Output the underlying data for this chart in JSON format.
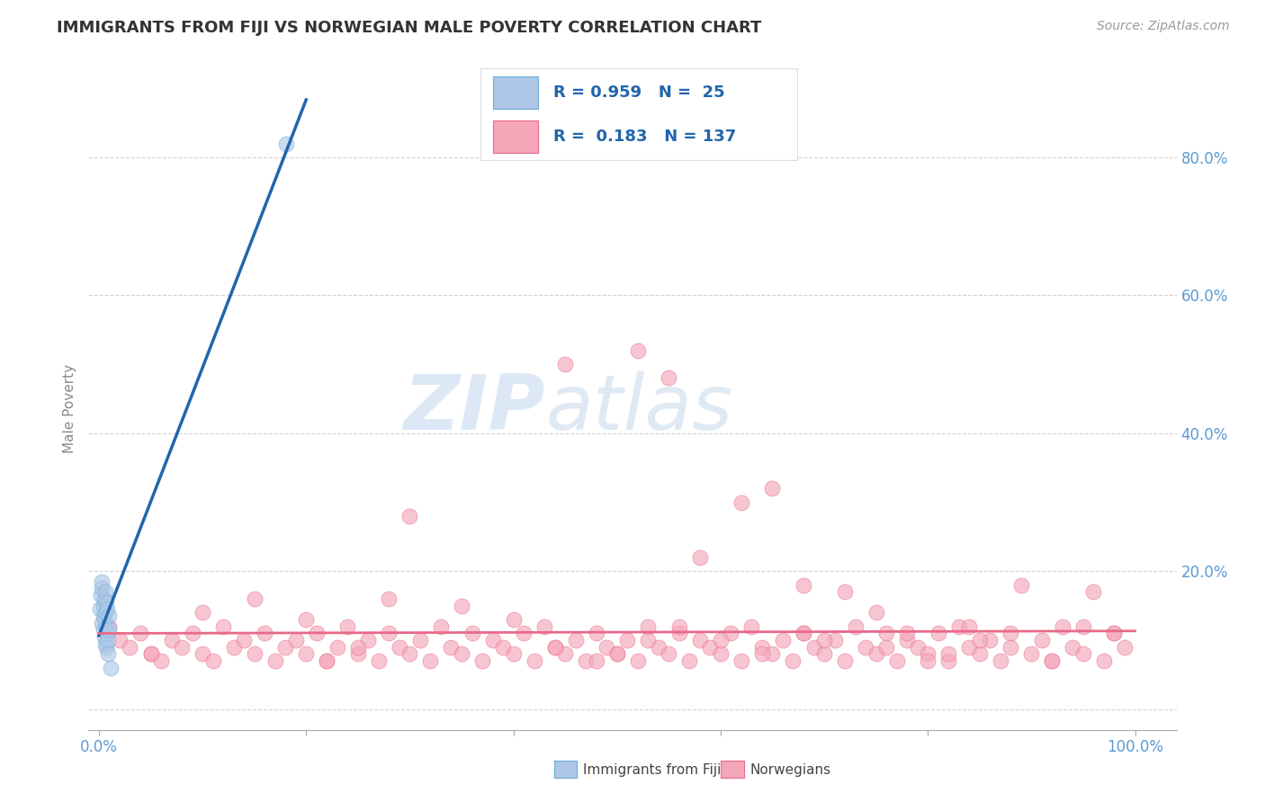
{
  "title": "IMMIGRANTS FROM FIJI VS NORWEGIAN MALE POVERTY CORRELATION CHART",
  "source": "Source: ZipAtlas.com",
  "ylabel": "Male Poverty",
  "x_ticks": [
    0.0,
    0.2,
    0.4,
    0.6,
    0.8,
    1.0
  ],
  "x_tick_labels": [
    "0.0%",
    "",
    "",
    "",
    "",
    "100.0%"
  ],
  "y_ticks": [
    0.0,
    0.2,
    0.4,
    0.6,
    0.8
  ],
  "y_tick_labels": [
    "",
    "20.0%",
    "40.0%",
    "60.0%",
    "80.0%"
  ],
  "legend_fiji_r": "0.959",
  "legend_fiji_n": "25",
  "legend_nor_r": "0.183",
  "legend_nor_n": "137",
  "blue_scatter_color": "#aec7e8",
  "pink_scatter_color": "#f4a7b9",
  "blue_line_color": "#2166ac",
  "pink_line_color": "#e8698a",
  "tick_color": "#5b9bd5",
  "watermark_color": "#c6d9f0",
  "ylabel_color": "#888888",
  "fiji_x": [
    0.001,
    0.002,
    0.003,
    0.003,
    0.003,
    0.004,
    0.004,
    0.004,
    0.005,
    0.005,
    0.005,
    0.006,
    0.006,
    0.006,
    0.007,
    0.007,
    0.007,
    0.008,
    0.008,
    0.009,
    0.009,
    0.01,
    0.01,
    0.011,
    0.181
  ],
  "fiji_y": [
    0.145,
    0.165,
    0.175,
    0.185,
    0.125,
    0.135,
    0.15,
    0.115,
    0.13,
    0.16,
    0.105,
    0.14,
    0.17,
    0.095,
    0.12,
    0.155,
    0.09,
    0.11,
    0.145,
    0.1,
    0.08,
    0.135,
    0.115,
    0.06,
    0.82
  ],
  "nor_x": [
    0.01,
    0.02,
    0.03,
    0.04,
    0.05,
    0.06,
    0.07,
    0.08,
    0.09,
    0.1,
    0.11,
    0.12,
    0.13,
    0.14,
    0.15,
    0.16,
    0.17,
    0.18,
    0.19,
    0.2,
    0.21,
    0.22,
    0.23,
    0.24,
    0.25,
    0.26,
    0.27,
    0.28,
    0.29,
    0.3,
    0.31,
    0.32,
    0.33,
    0.34,
    0.35,
    0.36,
    0.37,
    0.38,
    0.39,
    0.4,
    0.41,
    0.42,
    0.43,
    0.44,
    0.45,
    0.46,
    0.47,
    0.48,
    0.49,
    0.5,
    0.51,
    0.52,
    0.53,
    0.54,
    0.55,
    0.56,
    0.57,
    0.58,
    0.59,
    0.6,
    0.61,
    0.62,
    0.63,
    0.64,
    0.65,
    0.66,
    0.67,
    0.68,
    0.69,
    0.7,
    0.71,
    0.72,
    0.73,
    0.74,
    0.75,
    0.76,
    0.77,
    0.78,
    0.79,
    0.8,
    0.81,
    0.82,
    0.83,
    0.84,
    0.85,
    0.86,
    0.87,
    0.88,
    0.89,
    0.9,
    0.91,
    0.92,
    0.93,
    0.94,
    0.95,
    0.96,
    0.97,
    0.98,
    0.99,
    0.15,
    0.3,
    0.45,
    0.52,
    0.55,
    0.58,
    0.62,
    0.65,
    0.68,
    0.5,
    0.53,
    0.56,
    0.22,
    0.25,
    0.28,
    0.35,
    0.72,
    0.75,
    0.78,
    0.82,
    0.85,
    0.88,
    0.92,
    0.95,
    0.98,
    0.4,
    0.44,
    0.48,
    0.6,
    0.64,
    0.68,
    0.76,
    0.8,
    0.84,
    0.2,
    0.1,
    0.05,
    0.7
  ],
  "nor_y": [
    0.12,
    0.1,
    0.09,
    0.11,
    0.08,
    0.07,
    0.1,
    0.09,
    0.11,
    0.08,
    0.07,
    0.12,
    0.09,
    0.1,
    0.08,
    0.11,
    0.07,
    0.09,
    0.1,
    0.08,
    0.11,
    0.07,
    0.09,
    0.12,
    0.08,
    0.1,
    0.07,
    0.11,
    0.09,
    0.08,
    0.1,
    0.07,
    0.12,
    0.09,
    0.08,
    0.11,
    0.07,
    0.1,
    0.09,
    0.08,
    0.11,
    0.07,
    0.12,
    0.09,
    0.08,
    0.1,
    0.07,
    0.11,
    0.09,
    0.08,
    0.1,
    0.07,
    0.12,
    0.09,
    0.08,
    0.11,
    0.07,
    0.1,
    0.09,
    0.08,
    0.11,
    0.07,
    0.12,
    0.09,
    0.08,
    0.1,
    0.07,
    0.11,
    0.09,
    0.08,
    0.1,
    0.07,
    0.12,
    0.09,
    0.08,
    0.11,
    0.07,
    0.1,
    0.09,
    0.08,
    0.11,
    0.07,
    0.12,
    0.09,
    0.08,
    0.1,
    0.07,
    0.11,
    0.18,
    0.08,
    0.1,
    0.07,
    0.12,
    0.09,
    0.08,
    0.17,
    0.07,
    0.11,
    0.09,
    0.16,
    0.28,
    0.5,
    0.52,
    0.48,
    0.22,
    0.3,
    0.32,
    0.18,
    0.08,
    0.1,
    0.12,
    0.07,
    0.09,
    0.16,
    0.15,
    0.17,
    0.14,
    0.11,
    0.08,
    0.1,
    0.09,
    0.07,
    0.12,
    0.11,
    0.13,
    0.09,
    0.07,
    0.1,
    0.08,
    0.11,
    0.09,
    0.07,
    0.12,
    0.13,
    0.14,
    0.08,
    0.1
  ]
}
